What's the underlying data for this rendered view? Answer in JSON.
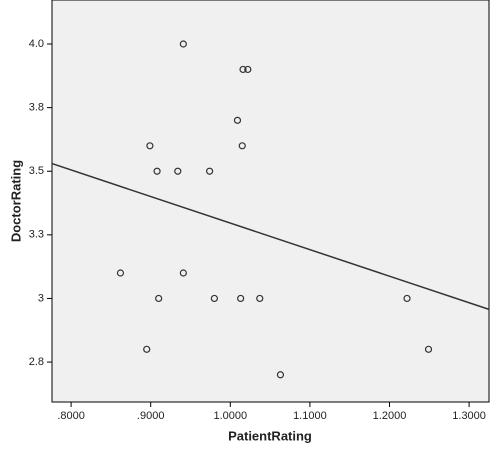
{
  "chart_data": {
    "type": "scatter",
    "x_label": "PatientRating",
    "y_label": "DoctorRating",
    "x": [
      0.941,
      1.016,
      1.022,
      1.009,
      0.899,
      1.015,
      0.908,
      0.934,
      0.974,
      0.862,
      0.941,
      0.91,
      0.98,
      1.013,
      1.037,
      1.222,
      0.895,
      1.249,
      1.063
    ],
    "y": [
      4.0,
      3.9,
      3.9,
      3.7,
      3.6,
      3.6,
      3.5,
      3.5,
      3.5,
      3.1,
      3.1,
      3.0,
      3.0,
      3.0,
      3.0,
      3.0,
      2.8,
      2.8,
      2.7
    ],
    "fit_line": {
      "x": [
        0.776,
        1.325
      ],
      "y": [
        3.53,
        2.957
      ]
    },
    "xlim": [
      0.776,
      1.325
    ],
    "ylim": [
      2.593,
      4.173
    ],
    "xticks": [
      {
        "value": 0.8,
        "label": ".8000"
      },
      {
        "value": 0.9,
        "label": ".9000"
      },
      {
        "value": 1.0,
        "label": "1.0000"
      },
      {
        "value": 1.1,
        "label": "1.1000"
      },
      {
        "value": 1.2,
        "label": "1.2000"
      },
      {
        "value": 1.3,
        "label": "1.3000"
      }
    ],
    "yticks": [
      {
        "value": 2.75,
        "label": "2.8"
      },
      3.0,
      {
        "value": 3.25,
        "label": "3.3"
      },
      3.5,
      {
        "value": 3.75,
        "label": "3.8"
      },
      {
        "value": 4.0,
        "label": "4.0"
      }
    ],
    "background": "#f0f0f0",
    "marker_color": "#333333",
    "line_color": "#333333"
  }
}
